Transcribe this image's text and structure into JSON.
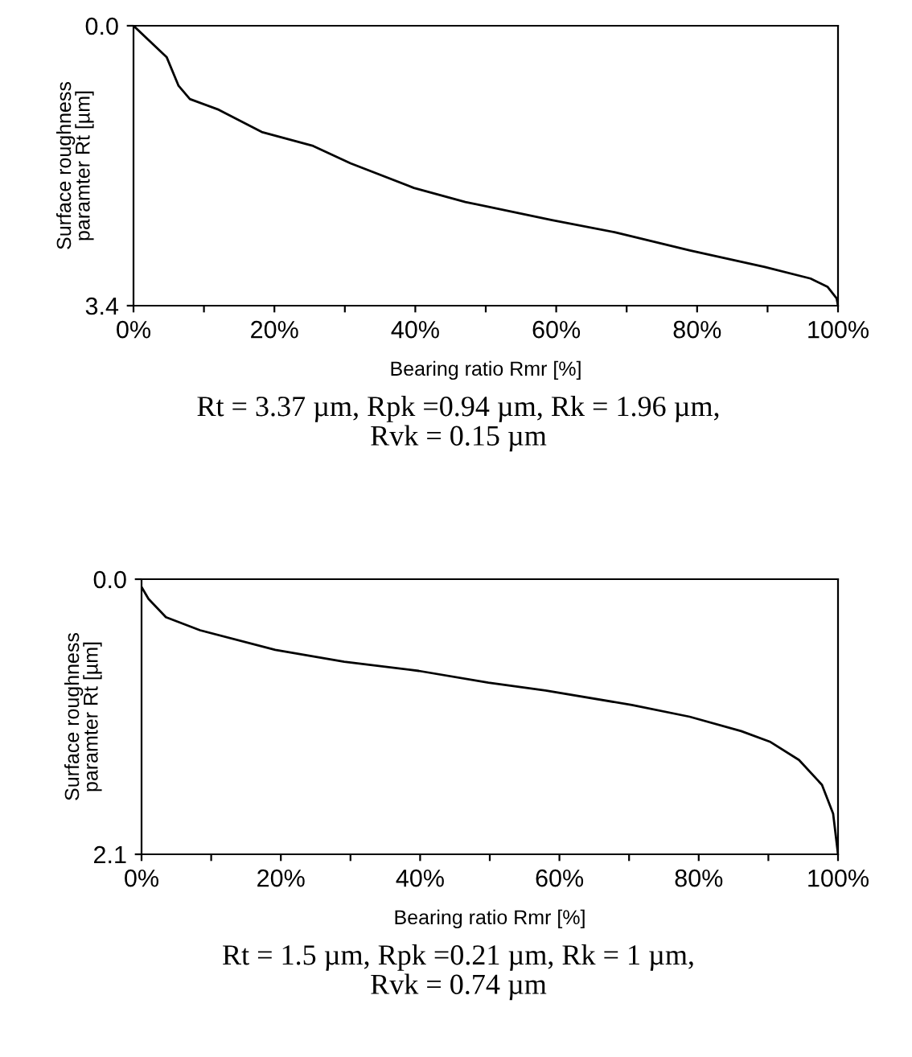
{
  "chart_data": [
    {
      "type": "line",
      "xlabel": "Bearing ratio Rmr [%]",
      "ylabel": "Surface roughness\nparamter Rt [µm]",
      "annotations": [
        "Rt = 3.37 µm, Rpk =0.94 µm, Rk = 1.96 µm,\nRvk = 0.15 µm"
      ],
      "x": [
        0,
        4.7,
        6.4,
        8.0,
        12.1,
        18.2,
        25.5,
        30.8,
        39.8,
        47.1,
        59.4,
        68.4,
        79.0,
        89.6,
        96.1,
        98.5,
        99.8,
        100
      ],
      "series": [
        {
          "color": "#000000",
          "values": [
            0,
            0.38,
            0.73,
            0.89,
            1.02,
            1.29,
            1.46,
            1.67,
            1.97,
            2.14,
            2.36,
            2.51,
            2.73,
            2.93,
            3.07,
            3.17,
            3.31,
            3.4
          ]
        }
      ],
      "xlim": [
        0,
        100
      ],
      "ylim": [
        3.4,
        0
      ],
      "yticks": [
        {
          "value": 0,
          "label": "0.0"
        },
        3.4
      ],
      "xticks": [
        {
          "value": 0,
          "label": "0%"
        },
        {
          "value": 10,
          "label": null
        },
        {
          "value": 20,
          "label": "20%"
        },
        {
          "value": 30,
          "label": null
        },
        {
          "value": 40,
          "label": "40%"
        },
        {
          "value": 50,
          "label": null
        },
        {
          "value": 60,
          "label": "60%"
        },
        {
          "value": 70,
          "label": null
        },
        {
          "value": 80,
          "label": "80%"
        },
        {
          "value": 90,
          "label": null
        },
        {
          "value": 100,
          "label": "100%"
        }
      ],
      "grid": false,
      "marker": "none",
      "line_style": "solid"
    },
    {
      "type": "line",
      "xlabel": "Bearing ratio Rmr [%]",
      "ylabel": "Surface roughness\nparamter Rt [µm]",
      "annotations": [
        "Rt = 1.5 µm, Rpk =0.21 µm, Rk = 1 µm,\nRvk = 0.74 µm"
      ],
      "x": [
        0,
        1.0,
        3.5,
        8.4,
        19.2,
        29.1,
        39.8,
        49.8,
        58.0,
        70.4,
        78.7,
        86.1,
        90.2,
        94.4,
        97.7,
        99.3,
        100
      ],
      "series": [
        {
          "color": "#000000",
          "values": [
            0.06,
            0.15,
            0.29,
            0.39,
            0.54,
            0.63,
            0.7,
            0.79,
            0.85,
            0.96,
            1.05,
            1.16,
            1.24,
            1.38,
            1.57,
            1.79,
            2.1
          ]
        }
      ],
      "xlim": [
        0,
        100
      ],
      "ylim": [
        2.1,
        0
      ],
      "yticks": [
        {
          "value": 0,
          "label": "0.0"
        },
        2.1
      ],
      "xticks": [
        {
          "value": 0,
          "label": "0%"
        },
        {
          "value": 10,
          "label": null
        },
        {
          "value": 20,
          "label": "20%"
        },
        {
          "value": 30,
          "label": null
        },
        {
          "value": 40,
          "label": "40%"
        },
        {
          "value": 50,
          "label": null
        },
        {
          "value": 60,
          "label": "60%"
        },
        {
          "value": 70,
          "label": null
        },
        {
          "value": 80,
          "label": "80%"
        },
        {
          "value": 90,
          "label": null
        },
        {
          "value": 100,
          "label": "100%"
        }
      ],
      "grid": false,
      "marker": "none",
      "line_style": "solid"
    }
  ]
}
